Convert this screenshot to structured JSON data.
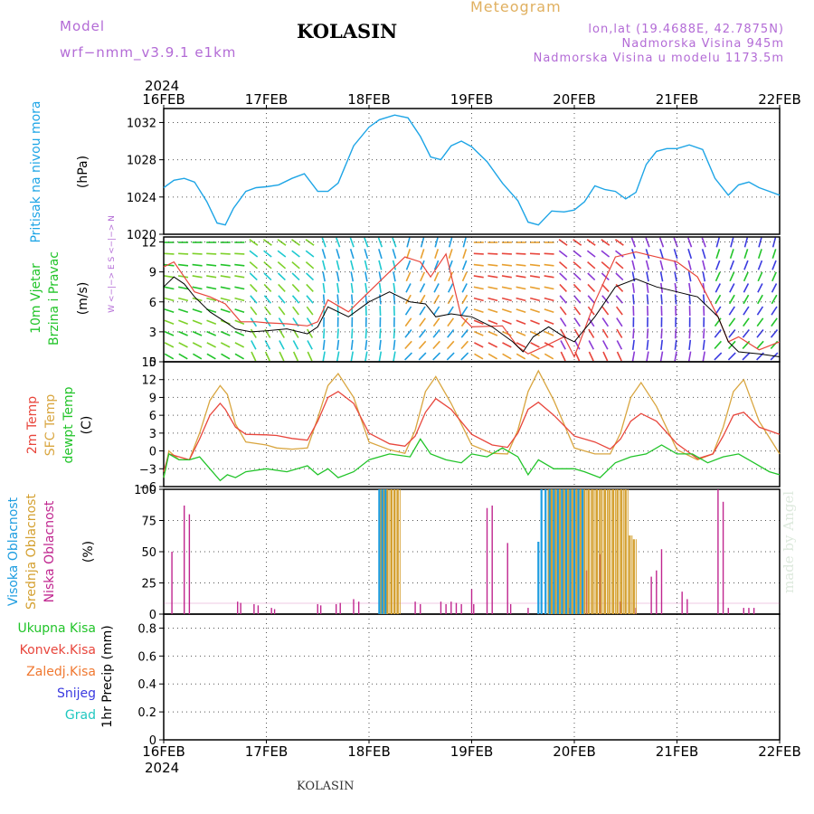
{
  "header": {
    "model_label": "Model",
    "model_version": "wrf−nmm_v3.9.1  e1km",
    "station": "KOLASIN",
    "title": "Meteogram",
    "lonlat": "lon,lat (19.4688E, 42.7875N)",
    "elevation": "Nadmorska Visina 945m",
    "elevation_model": "Nadmorska Visina u modelu 1173.5m"
  },
  "footer": {
    "station": "KOLASIN"
  },
  "credit": "made by Angel",
  "colors": {
    "pressure": "#1ea5e6",
    "t2m": "#e8463c",
    "tsfc": "#d9a640",
    "dewpt": "#22c42a",
    "high_cloud": "#1e9de0",
    "mid_cloud": "#d4a030",
    "low_cloud": "#c0268f",
    "wind_speed": "#000000",
    "gust": "#e8463c",
    "total_precip": "#22c42a",
    "conv_precip": "#e8463c",
    "frz_precip": "#f07830",
    "snow": "#3a3ae0",
    "hail": "#20c8c0",
    "legend_violet": "#b36bd6"
  },
  "chart_data": [
    {
      "type": "line",
      "panel": "pressure",
      "ylabel_lines": [
        "Pritisak na nivou mora",
        "(hPa)"
      ],
      "yticks": [
        1020,
        1024,
        1028,
        1032
      ],
      "ylim": [
        1020,
        1033.5
      ],
      "x_unit": "days since 2024-02-16 00Z",
      "xtick_labels": [
        "16FEB",
        "17FEB",
        "18FEB",
        "19FEB",
        "20FEB",
        "21FEB",
        "22FEB"
      ],
      "top_year": "2024",
      "bottom_year": "2024",
      "xlim": [
        0,
        6
      ],
      "grid": true,
      "series": [
        {
          "name": "Pritisak na nivou mora",
          "x": [
            0.0,
            0.1,
            0.2,
            0.3,
            0.42,
            0.52,
            0.6,
            0.68,
            0.8,
            0.9,
            1.0,
            1.12,
            1.25,
            1.37,
            1.5,
            1.6,
            1.7,
            1.85,
            2.0,
            2.1,
            2.25,
            2.38,
            2.5,
            2.6,
            2.7,
            2.8,
            2.9,
            3.0,
            3.15,
            3.3,
            3.45,
            3.55,
            3.65,
            3.78,
            3.9,
            4.0,
            4.1,
            4.2,
            4.3,
            4.4,
            4.5,
            4.6,
            4.7,
            4.8,
            4.9,
            5.0,
            5.12,
            5.25,
            5.37,
            5.5,
            5.6,
            5.7,
            5.8,
            5.9,
            6.0
          ],
          "values": [
            1025,
            1025.8,
            1026,
            1025.6,
            1023.5,
            1021.2,
            1021,
            1022.8,
            1024.6,
            1025,
            1025.1,
            1025.3,
            1026,
            1026.5,
            1024.6,
            1024.6,
            1025.5,
            1029.5,
            1031.5,
            1032.3,
            1032.8,
            1032.5,
            1030.5,
            1028.3,
            1028,
            1029.5,
            1030,
            1029.4,
            1027.8,
            1025.5,
            1023.6,
            1021.3,
            1021,
            1022.5,
            1022.4,
            1022.6,
            1023.5,
            1025.2,
            1024.8,
            1024.6,
            1023.8,
            1024.5,
            1027.5,
            1028.9,
            1029.2,
            1029.2,
            1029.6,
            1029.1,
            1026,
            1024.2,
            1025.3,
            1025.6,
            1025,
            1024.6,
            1024.2
          ]
        }
      ]
    },
    {
      "type": "line",
      "panel": "wind",
      "ylabel_lines": [
        "10m Vjetar",
        "Brzina i Pravac",
        "(m/s)"
      ],
      "direction_legend": "W <−|−> E  S <−|−> N",
      "yticks": [
        0,
        3,
        6,
        9,
        12
      ],
      "ylim": [
        0,
        12.5
      ],
      "xlim": [
        0,
        6
      ],
      "series": [
        {
          "name": "wind speed",
          "x": [
            0.0,
            0.1,
            0.2,
            0.3,
            0.45,
            0.6,
            0.7,
            0.85,
            1.0,
            1.2,
            1.4,
            1.5,
            1.6,
            1.8,
            2.0,
            2.2,
            2.4,
            2.55,
            2.65,
            2.8,
            3.0,
            3.2,
            3.4,
            3.5,
            3.6,
            3.75,
            3.9,
            4.0,
            4.2,
            4.4,
            4.6,
            4.8,
            5.0,
            5.2,
            5.4,
            5.5,
            5.6,
            5.8,
            6.0
          ],
          "values": [
            7.5,
            8.5,
            7.8,
            6.5,
            5.0,
            4.0,
            3.3,
            3.0,
            3.1,
            3.3,
            2.8,
            3.5,
            5.5,
            4.5,
            6.0,
            7.0,
            6.0,
            5.8,
            4.5,
            4.8,
            4.5,
            3.5,
            2.0,
            1.0,
            2.5,
            3.5,
            2.5,
            2.0,
            4.5,
            7.5,
            8.3,
            7.5,
            7.0,
            6.5,
            4.5,
            2.0,
            1.0,
            0.8,
            0.5
          ]
        },
        {
          "name": "gust",
          "x": [
            0.0,
            0.1,
            0.2,
            0.3,
            0.45,
            0.6,
            0.75,
            0.9,
            1.0,
            1.2,
            1.4,
            1.5,
            1.6,
            1.8,
            2.0,
            2.2,
            2.35,
            2.5,
            2.6,
            2.75,
            2.9,
            3.0,
            3.3,
            3.45,
            3.55,
            3.7,
            3.9,
            4.0,
            4.2,
            4.4,
            4.6,
            4.8,
            5.0,
            5.2,
            5.4,
            5.5,
            5.6,
            5.8,
            6.0
          ],
          "values": [
            9.5,
            10.0,
            8.5,
            7.0,
            6.5,
            5.8,
            4.0,
            4.0,
            3.9,
            3.8,
            3.6,
            4.0,
            6.2,
            5.0,
            7.0,
            9.0,
            10.5,
            10.0,
            8.5,
            10.8,
            4.5,
            3.5,
            3.6,
            1.5,
            0.8,
            1.5,
            2.5,
            0.5,
            6.0,
            10.5,
            11.0,
            10.5,
            10.0,
            8.5,
            4.5,
            2.0,
            2.5,
            1.2,
            2.0
          ]
        }
      ]
    },
    {
      "type": "line",
      "panel": "temperature",
      "ylabel_lines": [
        "2m Temp",
        "SFC Temp",
        "dewpt Temp",
        "(C)"
      ],
      "yticks": [
        -6,
        -3,
        0,
        3,
        6,
        9,
        12,
        15
      ],
      "ylim": [
        -6,
        15
      ],
      "xlim": [
        0,
        6
      ],
      "series": [
        {
          "name": "2m Temp",
          "x": [
            0.0,
            0.05,
            0.15,
            0.25,
            0.35,
            0.45,
            0.55,
            0.6,
            0.7,
            0.8,
            1.0,
            1.1,
            1.25,
            1.4,
            1.5,
            1.6,
            1.7,
            1.85,
            2.0,
            2.2,
            2.35,
            2.45,
            2.55,
            2.65,
            2.8,
            3.0,
            3.2,
            3.35,
            3.45,
            3.55,
            3.65,
            3.8,
            4.0,
            4.2,
            4.35,
            4.45,
            4.55,
            4.65,
            4.8,
            5.0,
            5.2,
            5.35,
            5.45,
            5.55,
            5.65,
            5.8,
            6.0
          ],
          "values": [
            -3.5,
            -0.5,
            -1.0,
            -1.5,
            2.0,
            6.0,
            8.0,
            7.0,
            4.0,
            2.8,
            2.7,
            2.6,
            2.1,
            1.8,
            5.0,
            9.0,
            10.0,
            8.0,
            3.0,
            1.2,
            0.8,
            2.5,
            6.5,
            8.8,
            7.0,
            2.8,
            1.0,
            0.6,
            3.0,
            7.0,
            8.2,
            6.0,
            2.5,
            1.5,
            0.3,
            2.0,
            5.0,
            6.3,
            5.0,
            1.2,
            -1.3,
            -0.5,
            2.5,
            6.0,
            6.5,
            4.0,
            2.8
          ]
        },
        {
          "name": "SFC Temp",
          "x": [
            0.0,
            0.05,
            0.15,
            0.25,
            0.35,
            0.45,
            0.55,
            0.62,
            0.7,
            0.8,
            1.0,
            1.1,
            1.25,
            1.4,
            1.5,
            1.6,
            1.7,
            1.85,
            2.0,
            2.2,
            2.35,
            2.45,
            2.55,
            2.65,
            2.8,
            3.0,
            3.2,
            3.35,
            3.45,
            3.55,
            3.65,
            3.8,
            4.0,
            4.2,
            4.35,
            4.45,
            4.55,
            4.65,
            4.8,
            5.0,
            5.2,
            5.35,
            5.45,
            5.55,
            5.65,
            5.8,
            6.0
          ],
          "values": [
            -4.5,
            0.0,
            -1.5,
            -1.5,
            3.0,
            8.5,
            11.0,
            9.5,
            4.5,
            1.5,
            1.0,
            0.5,
            0.3,
            0.5,
            5.5,
            11.0,
            13.0,
            9.0,
            1.5,
            0.2,
            -0.4,
            3.5,
            10.0,
            12.5,
            8.0,
            1.0,
            -0.4,
            -0.5,
            3.5,
            10.0,
            13.5,
            8.5,
            0.5,
            -0.5,
            -0.5,
            3.0,
            9.0,
            11.5,
            7.5,
            0.2,
            -1.5,
            -0.5,
            4.0,
            10.0,
            12.0,
            5.0,
            -0.5
          ]
        },
        {
          "name": "dewpt Temp",
          "x": [
            0.0,
            0.05,
            0.15,
            0.25,
            0.35,
            0.45,
            0.55,
            0.62,
            0.7,
            0.8,
            1.0,
            1.2,
            1.4,
            1.5,
            1.6,
            1.7,
            1.85,
            2.0,
            2.2,
            2.4,
            2.5,
            2.6,
            2.75,
            2.9,
            3.0,
            3.15,
            3.3,
            3.45,
            3.55,
            3.65,
            3.8,
            4.0,
            4.1,
            4.25,
            4.4,
            4.55,
            4.7,
            4.85,
            5.0,
            5.15,
            5.3,
            5.45,
            5.6,
            5.75,
            5.9,
            6.0
          ],
          "values": [
            -4.5,
            -0.5,
            -1.5,
            -1.5,
            -1.0,
            -3.0,
            -5.0,
            -4.0,
            -4.5,
            -3.5,
            -3.0,
            -3.5,
            -2.5,
            -4.0,
            -3.0,
            -4.5,
            -3.5,
            -1.5,
            -0.5,
            -1.0,
            2.0,
            -0.5,
            -1.5,
            -2.0,
            -0.5,
            -1.0,
            0.5,
            -1.0,
            -4.0,
            -1.5,
            -3.0,
            -3.0,
            -3.5,
            -4.5,
            -2.0,
            -1.0,
            -0.5,
            1.0,
            -0.5,
            -0.5,
            -2.0,
            -1.0,
            -0.5,
            -2.0,
            -3.5,
            -4.0
          ]
        }
      ]
    },
    {
      "type": "bar",
      "panel": "cloud",
      "ylabel_lines": [
        "Visoka Oblacnost",
        "Srednja Oblacnost",
        "Niska Oblacnost",
        "(%)"
      ],
      "yticks": [
        0,
        25,
        50,
        75,
        100
      ],
      "ylim": [
        0,
        100
      ],
      "xlim": [
        0,
        6
      ],
      "series": [
        {
          "name": "Niska Oblacnost",
          "x": [
            0.08,
            0.2,
            0.25,
            0.72,
            0.75,
            0.88,
            0.92,
            1.05,
            1.08,
            1.5,
            1.53,
            1.68,
            1.72,
            1.85,
            1.9,
            2.1,
            2.45,
            2.5,
            2.7,
            2.75,
            2.8,
            2.85,
            2.9,
            3.0,
            3.02,
            3.15,
            3.2,
            3.35,
            3.38,
            3.55,
            3.95,
            4.12,
            4.25,
            4.45,
            4.5,
            4.6,
            4.75,
            4.8,
            4.85,
            5.05,
            5.1,
            5.4,
            5.45,
            5.5,
            5.65,
            5.7,
            5.75
          ],
          "values": [
            50,
            87,
            80,
            10,
            9,
            8,
            7,
            5,
            4,
            8,
            7,
            8,
            9,
            12,
            10,
            5,
            10,
            8,
            10,
            8,
            10,
            9,
            8,
            20,
            8,
            85,
            87,
            57,
            8,
            5,
            5,
            35,
            48,
            10,
            8,
            5,
            30,
            35,
            52,
            18,
            12,
            100,
            90,
            5,
            5,
            5,
            5
          ]
        },
        {
          "name": "Srednja Oblacnost",
          "x": [
            2.12,
            2.15,
            2.18,
            2.22,
            2.25,
            2.28,
            3.75,
            3.78,
            3.82,
            3.86,
            3.9,
            3.94,
            3.98,
            4.02,
            4.06,
            4.1,
            4.14,
            4.18,
            4.22,
            4.26,
            4.3,
            4.34,
            4.38,
            4.42,
            4.46,
            4.5,
            4.54,
            4.58
          ],
          "values": [
            100,
            100,
            100,
            100,
            100,
            100,
            100,
            100,
            100,
            100,
            100,
            100,
            100,
            100,
            100,
            100,
            100,
            100,
            100,
            100,
            100,
            100,
            100,
            100,
            100,
            100,
            63,
            60
          ]
        },
        {
          "name": "Visoka Oblacnost",
          "x": [
            2.1,
            2.13,
            2.16,
            3.65,
            3.68,
            3.72,
            3.76,
            3.8,
            3.84,
            3.88,
            3.92,
            3.96,
            4.0,
            4.04,
            4.08
          ],
          "values": [
            100,
            100,
            100,
            58,
            100,
            100,
            100,
            100,
            100,
            100,
            100,
            100,
            100,
            100,
            100
          ]
        }
      ]
    },
    {
      "type": "bar",
      "panel": "precip",
      "ylabel_lines": [
        "1hr Precip (mm)"
      ],
      "yticks": [
        0,
        0.2,
        0.4,
        0.6,
        0.8
      ],
      "ylim": [
        0,
        0.9
      ],
      "xlim": [
        0,
        6
      ],
      "legend_entries": [
        "Ukupna  Kisa",
        "Konvek.Kisa",
        "Zaledj.Kisa",
        "Snijeg",
        "Grad"
      ],
      "series": []
    }
  ]
}
